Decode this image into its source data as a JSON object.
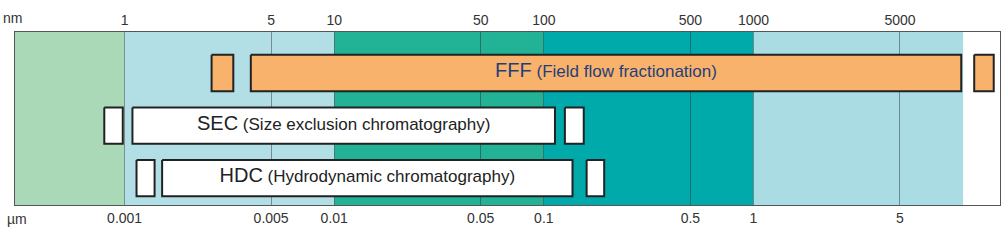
{
  "chart_data": {
    "type": "range",
    "x_label": "nm",
    "x2_label": "µm",
    "log": "x",
    "grid": true,
    "tick_labels": "x",
    "xlim": [
      0.3,
      15000
    ],
    "xticks": [
      1,
      5,
      10,
      50,
      100,
      500,
      1000,
      5000
    ],
    "x2lim": [
      0.0003,
      15
    ],
    "x2ticks": [
      0.001,
      0.005,
      0.01,
      0.05,
      0.1,
      0.5,
      1,
      5
    ],
    "bands": [
      {
        "from": 0.3,
        "to": 1,
        "color": "#a9d9b7"
      },
      {
        "from": 1,
        "to": 10,
        "color": "#b2dfe5"
      },
      {
        "from": 10,
        "to": 100,
        "color": "#22b296"
      },
      {
        "from": 100,
        "to": 1000,
        "color": "#00a9aa"
      },
      {
        "from": 1000,
        "to": 10000,
        "color": "#aadce4"
      }
    ],
    "series": [
      {
        "name": "FFF",
        "description": "(Field flow fractionation)",
        "color": "#f8b26c",
        "values": [
          [
            2.6,
            3.3
          ],
          [
            4.0,
            9800
          ],
          [
            11300,
            14000
          ]
        ]
      },
      {
        "name": "SEC",
        "description": "(Size exclusion chromatography)",
        "color": "#ffffff",
        "values": [
          [
            0.8,
            0.98
          ],
          [
            1.09,
            113
          ],
          [
            126,
            155
          ]
        ]
      },
      {
        "name": "HDC",
        "description": "(Hydrodynamic chromatography)",
        "color": "#ffffff",
        "values": [
          [
            1.14,
            1.39
          ],
          [
            1.51,
            137
          ],
          [
            160,
            194
          ]
        ]
      }
    ]
  }
}
